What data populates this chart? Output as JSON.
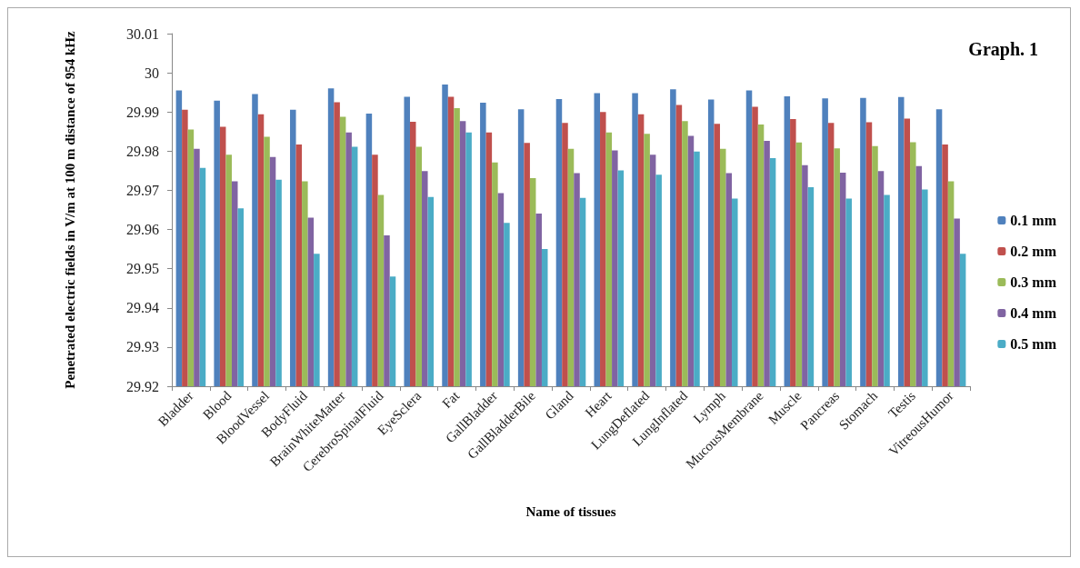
{
  "chart_data": {
    "type": "bar",
    "title": "Graph. 1",
    "xlabel": "Name of tissues",
    "ylabel": "Penetrated electric fields in V/m at 100 m distance of 954 kHz",
    "categories": [
      "Bladder",
      "Blood",
      "BloodVessel",
      "BodyFluid",
      "BrainWhiteMatter",
      "CerebroSpinalFluid",
      "EyeSclera",
      "Fat",
      "GallBladder",
      "GallBladderBile",
      "Gland",
      "Heart",
      "LungDeflated",
      "LungInflated",
      "Lymph",
      "MucousMembrane",
      "Muscle",
      "Pancreas",
      "Stomach",
      "Testis",
      "VitreousHumor"
    ],
    "series": [
      {
        "name": "0.1 mm",
        "color": "#4f81bd",
        "values": [
          29.9955,
          29.9929,
          29.9946,
          29.9906,
          29.996,
          29.9896,
          29.9939,
          29.997,
          29.9924,
          29.9907,
          29.9933,
          29.9948,
          29.9948,
          29.9958,
          29.9932,
          29.9955,
          29.994,
          29.9935,
          29.9936,
          29.9938,
          29.9907
        ]
      },
      {
        "name": "0.2 mm",
        "color": "#c0504d",
        "values": [
          29.9906,
          29.9862,
          29.9894,
          29.9817,
          29.9925,
          29.9791,
          29.9875,
          29.9939,
          29.9848,
          29.9821,
          29.9872,
          29.99,
          29.9894,
          29.9918,
          29.987,
          29.9913,
          29.9882,
          29.9872,
          29.9874,
          29.9883,
          29.9817
        ]
      },
      {
        "name": "0.3 mm",
        "color": "#9bbb59",
        "values": [
          29.9855,
          29.9791,
          29.9837,
          29.9723,
          29.9888,
          29.9688,
          29.9811,
          29.991,
          29.9771,
          29.9731,
          29.9806,
          29.9848,
          29.9844,
          29.9877,
          29.9806,
          29.9868,
          29.9822,
          29.9807,
          29.9813,
          29.9823,
          29.9723
        ]
      },
      {
        "name": "0.4 mm",
        "color": "#8064a2",
        "values": [
          29.9806,
          29.9723,
          29.9785,
          29.963,
          29.9848,
          29.9585,
          29.9749,
          29.9877,
          29.9693,
          29.9641,
          29.9744,
          29.9802,
          29.9791,
          29.9839,
          29.9744,
          29.9826,
          29.9764,
          29.9745,
          29.9749,
          29.9762,
          29.9628
        ]
      },
      {
        "name": "0.5 mm",
        "color": "#4bacc6",
        "values": [
          29.9757,
          29.9654,
          29.9727,
          29.9538,
          29.9811,
          29.948,
          29.9683,
          29.9848,
          29.9617,
          29.955,
          29.9681,
          29.9751,
          29.974,
          29.9799,
          29.9679,
          29.9782,
          29.9708,
          29.9679,
          29.9688,
          29.9702,
          29.9538
        ]
      }
    ],
    "ylim": [
      29.92,
      30.01
    ],
    "yticks": [
      29.92,
      29.93,
      29.94,
      29.95,
      29.96,
      29.97,
      29.98,
      29.99,
      30,
      30.01
    ],
    "grid": false,
    "legend": "right"
  }
}
